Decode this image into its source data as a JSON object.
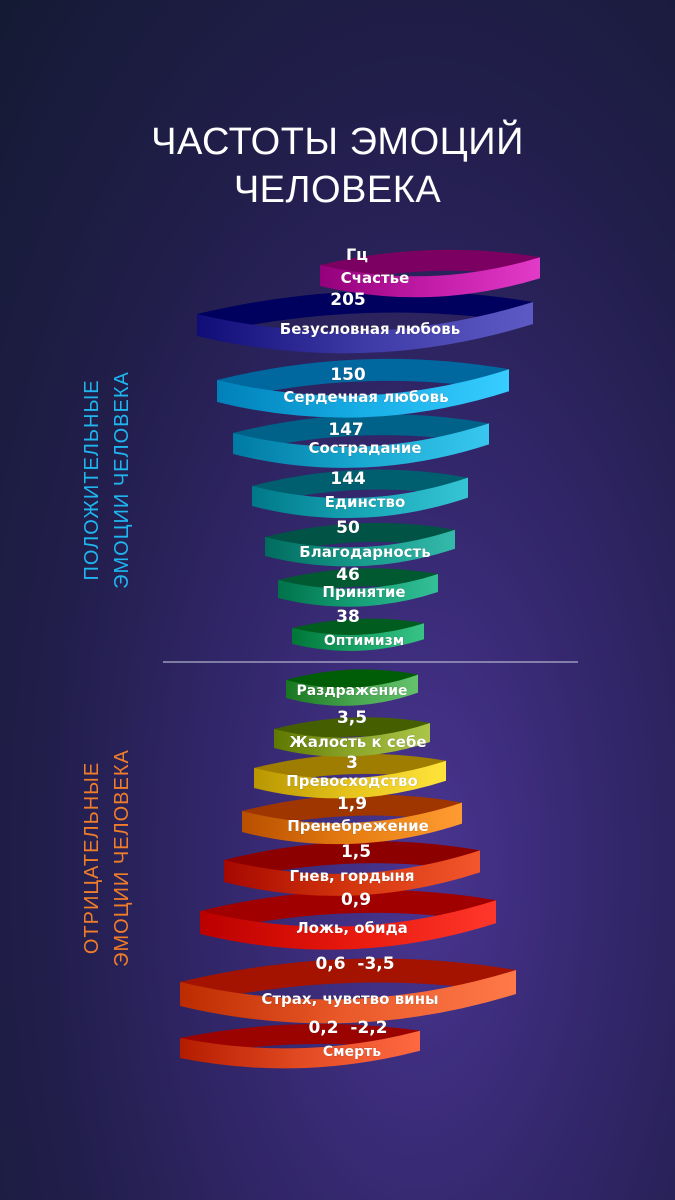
{
  "title": {
    "line1": "ЧАСТОТЫ ЭМОЦИЙ",
    "line2": "ЧЕЛОВЕКА"
  },
  "unit": "Гц",
  "positive_side": {
    "line1": "ПОЛОЖИТЕЛЬНЫЕ",
    "line2": "ЭМОЦИИ ЧЕЛОВЕКА",
    "color": "#1fb6f0"
  },
  "negative_side": {
    "line1": "ОТРИЦАТЕЛЬНЫЕ",
    "line2": "ЭМОЦИИ ЧЕЛОВЕКА",
    "color": "#f07d2a"
  },
  "positive": [
    {
      "label": "Счастье",
      "value": "205",
      "color": "#c21ca8"
    },
    {
      "label": "Безусловная любовь",
      "value": "150",
      "color": "#3e3aa6"
    },
    {
      "label": "Сердечная любовь",
      "value": "147",
      "color": "#18aee6"
    },
    {
      "label": "Сострадание",
      "value": "144",
      "color": "#18a8d0"
    },
    {
      "label": "Единство",
      "value": "50",
      "color": "#17a6b6"
    },
    {
      "label": "Благодарность",
      "value": "46",
      "color": "#169a8c"
    },
    {
      "label": "Принятие",
      "value": "38",
      "color": "#16a078"
    },
    {
      "label": "Оптимизм",
      "value": "",
      "color": "#18a466"
    }
  ],
  "negative": [
    {
      "label": "Раздражение",
      "value": "3,5",
      "color": "#46a44e"
    },
    {
      "label": "Жалость к себе",
      "value": "3",
      "color": "#8ca62a"
    },
    {
      "label": "Превосходство",
      "value": "1,9",
      "color": "#e6c41c"
    },
    {
      "label": "Пренебрежение",
      "value": "1,5",
      "color": "#e67d12"
    },
    {
      "label": "Гнев, гордыня",
      "value": "0,9",
      "color": "#d4360e"
    },
    {
      "label": "Ложь, обида",
      "value": "0,6  -3,5",
      "color": "#e8180c"
    },
    {
      "label": "Страх, чувство вины",
      "value": "0,2  -2,2",
      "color": "#ea5a2a"
    },
    {
      "label": "Смерть",
      "value": "",
      "color": "#e24a22"
    }
  ],
  "divider_color": "#d0d4e4"
}
